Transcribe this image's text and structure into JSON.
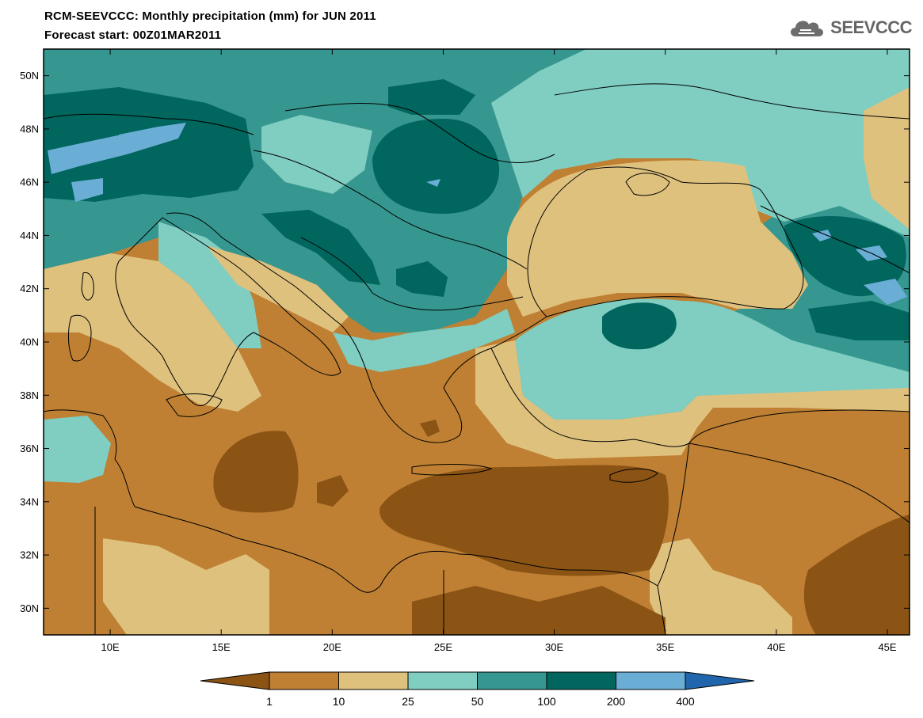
{
  "header": {
    "title": "RCM-SEEVCCC: Monthly precipitation (mm) for JUN 2011",
    "subtitle": "Forecast start: 00Z01MAR2011",
    "logo_text": "SEEVCCC"
  },
  "map": {
    "lon_range": [
      7,
      46
    ],
    "lat_range": [
      29,
      51
    ],
    "lat_ticks": [
      "50N",
      "48N",
      "46N",
      "44N",
      "42N",
      "40N",
      "38N",
      "36N",
      "34N",
      "32N",
      "30N"
    ],
    "lon_ticks": [
      "10E",
      "15E",
      "20E",
      "25E",
      "30E",
      "35E",
      "40E",
      "45E"
    ]
  },
  "legend": {
    "labels": [
      "1",
      "10",
      "25",
      "50",
      "100",
      "200",
      "400"
    ],
    "colors": [
      "#8b5415",
      "#bf8033",
      "#dfc17e",
      "#80cdc1",
      "#35978f",
      "#01665e",
      "#6aaed6",
      "#2166ac"
    ]
  },
  "icons": [
    "cloud-logo-icon"
  ]
}
